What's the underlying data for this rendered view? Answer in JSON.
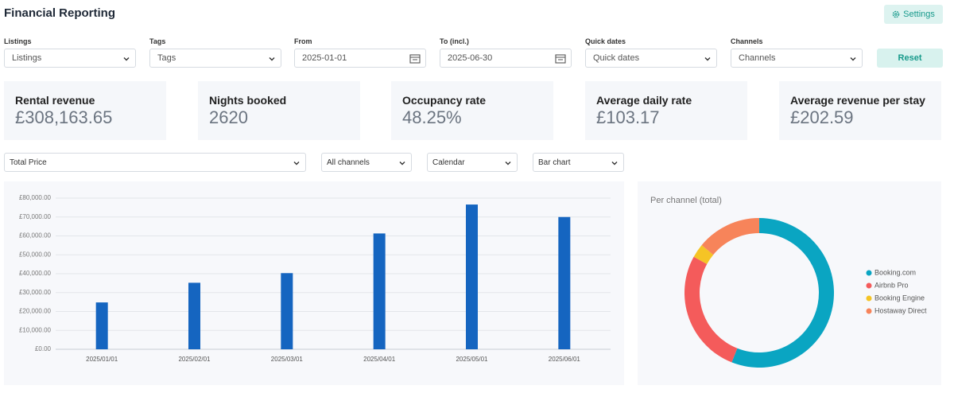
{
  "header": {
    "title": "Financial Reporting",
    "settings_button": "Settings"
  },
  "filters": [
    {
      "label": "Listings",
      "value": "Listings",
      "kind": "select"
    },
    {
      "label": "Tags",
      "value": "Tags",
      "kind": "select"
    },
    {
      "label": "From",
      "value": "2025-01-01",
      "kind": "date"
    },
    {
      "label": "To (incl.)",
      "value": "2025-06-30",
      "kind": "date"
    },
    {
      "label": "Quick dates",
      "value": "Quick dates",
      "kind": "select"
    },
    {
      "label": "Channels",
      "value": "Channels",
      "kind": "select"
    }
  ],
  "reset_button": "Reset",
  "kpis": [
    {
      "label": "Rental revenue",
      "value": "£308,163.65"
    },
    {
      "label": "Nights booked",
      "value": "2620"
    },
    {
      "label": "Occupancy rate",
      "value": "48.25%"
    },
    {
      "label": "Average daily rate",
      "value": "£103.17"
    },
    {
      "label": "Average revenue per stay",
      "value": "£202.59"
    }
  ],
  "chart_controls": [
    "Total Price",
    "All channels",
    "Calendar",
    "Bar chart"
  ],
  "chart_data": [
    {
      "type": "bar",
      "categories": [
        "2025/01/01",
        "2025/02/01",
        "2025/03/01",
        "2025/04/01",
        "2025/05/01",
        "2025/06/01"
      ],
      "values": [
        24800,
        35200,
        40300,
        61300,
        76600,
        70000
      ],
      "color": "#1565c0",
      "ylim": [
        0,
        80000
      ],
      "yticks": [
        {
          "value": 0,
          "label": "£0.00"
        },
        {
          "value": 10000,
          "label": "£10,000.00"
        },
        {
          "value": 20000,
          "label": "£20,000.00"
        },
        {
          "value": 30000,
          "label": "£30,000.00"
        },
        {
          "value": 40000,
          "label": "£40,000.00"
        },
        {
          "value": 50000,
          "label": "£50,000.00"
        },
        {
          "value": 60000,
          "label": "£60,000.00"
        },
        {
          "value": 70000,
          "label": "£70,000.00"
        },
        {
          "value": 80000,
          "label": "£80,000.00"
        }
      ],
      "grid": true
    },
    {
      "type": "pie",
      "title": "Per channel (total)",
      "categories": [
        "Booking.com",
        "Airbnb Pro",
        "Booking Engine",
        "Hostaway Direct"
      ],
      "values": [
        56,
        27,
        3,
        14
      ],
      "colors": [
        "#0aa5c2",
        "#f45b5b",
        "#f5c425",
        "#f7845a"
      ],
      "donut": true
    }
  ]
}
